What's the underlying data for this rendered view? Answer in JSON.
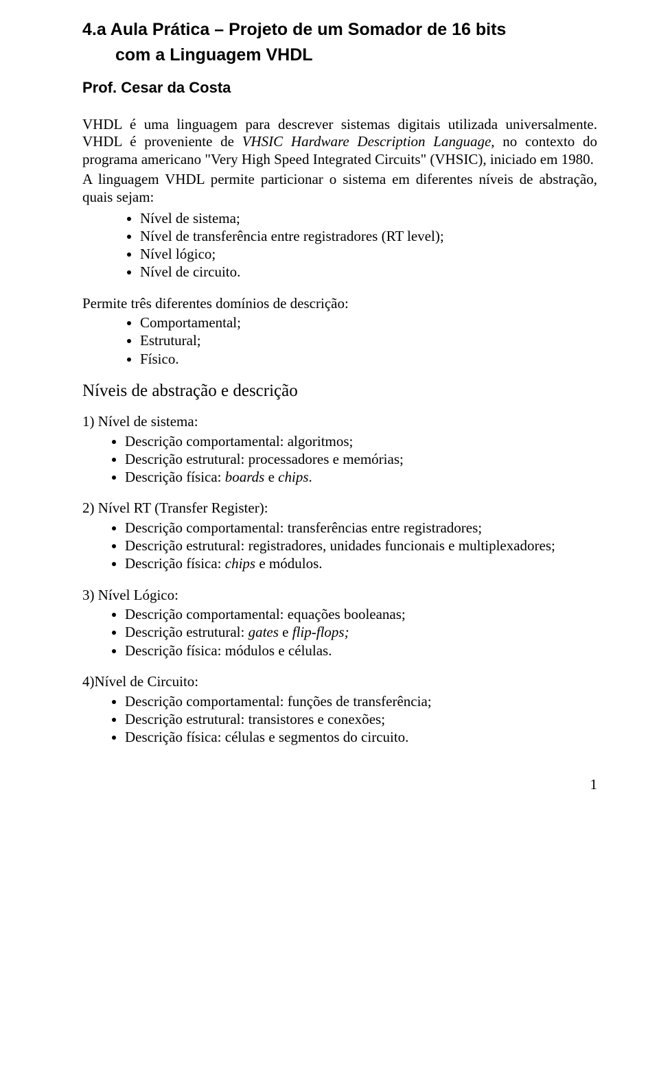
{
  "title": {
    "line1": "4.a Aula Prática – Projeto de um Somador de 16 bits",
    "line2": "com a Linguagem VHDL"
  },
  "author": "Prof. Cesar da Costa",
  "intro": {
    "p1": "VHDL é uma linguagem para descrever sistemas digitais utilizada universalmente. VHDL é proveniente de ",
    "p1_em": "VHSIC Hardware Description Language",
    "p1_rest": ", no contexto do programa americano \"Very High Speed Integrated Circuits\" (VHSIC), iniciado em 1980.",
    "p2": "A linguagem VHDL permite particionar o sistema em diferentes níveis de abstração, quais sejam:",
    "bullets": [
      "Nível de sistema;",
      "Nível de transferência entre registradores (RT level);",
      "Nível lógico;",
      "Nível de circuito."
    ]
  },
  "domains": {
    "lead": "Permite três diferentes domínios de descrição:",
    "bullets": [
      "Comportamental;",
      "Estrutural;",
      "Físico."
    ]
  },
  "section_heading": "Níveis de abstração e descrição",
  "levels": [
    {
      "lead": "1) Nível de sistema:",
      "items": [
        {
          "pre": "Descrição comportamental: algoritmos;",
          "em": "",
          "post": ""
        },
        {
          "pre": "Descrição estrutural: processadores e memórias;",
          "em": "",
          "post": ""
        },
        {
          "pre": "Descrição física: ",
          "em": "boards",
          "mid": " e ",
          "em2": "chips",
          "post": "."
        }
      ]
    },
    {
      "lead": "2) Nível RT (Transfer Register):",
      "items": [
        {
          "pre": "Descrição comportamental: transferências entre registradores;",
          "em": "",
          "post": ""
        },
        {
          "pre": "Descrição estrutural: registradores, unidades funcionais e multiplexadores;",
          "em": "",
          "post": ""
        },
        {
          "pre": "Descrição física: ",
          "em": "chips",
          "mid": " e módulos.",
          "em2": "",
          "post": ""
        }
      ]
    },
    {
      "lead": "3) Nível Lógico:",
      "items": [
        {
          "pre": "Descrição comportamental: equações booleanas;",
          "em": "",
          "post": ""
        },
        {
          "pre": "Descrição estrutural: ",
          "em": "gates",
          "mid": " e ",
          "em2": "flip-flops;",
          "post": ""
        },
        {
          "pre": "Descrição física: módulos e células.",
          "em": "",
          "post": ""
        }
      ]
    },
    {
      "lead": "4)Nível de Circuito:",
      "items": [
        {
          "pre": "Descrição comportamental: funções de transferência;",
          "em": "",
          "post": ""
        },
        {
          "pre": "Descrição estrutural: transistores e conexões;",
          "em": "",
          "post": ""
        },
        {
          "pre": "Descrição física: células e segmentos do circuito.",
          "em": "",
          "post": ""
        }
      ]
    }
  ],
  "page_number": "1"
}
